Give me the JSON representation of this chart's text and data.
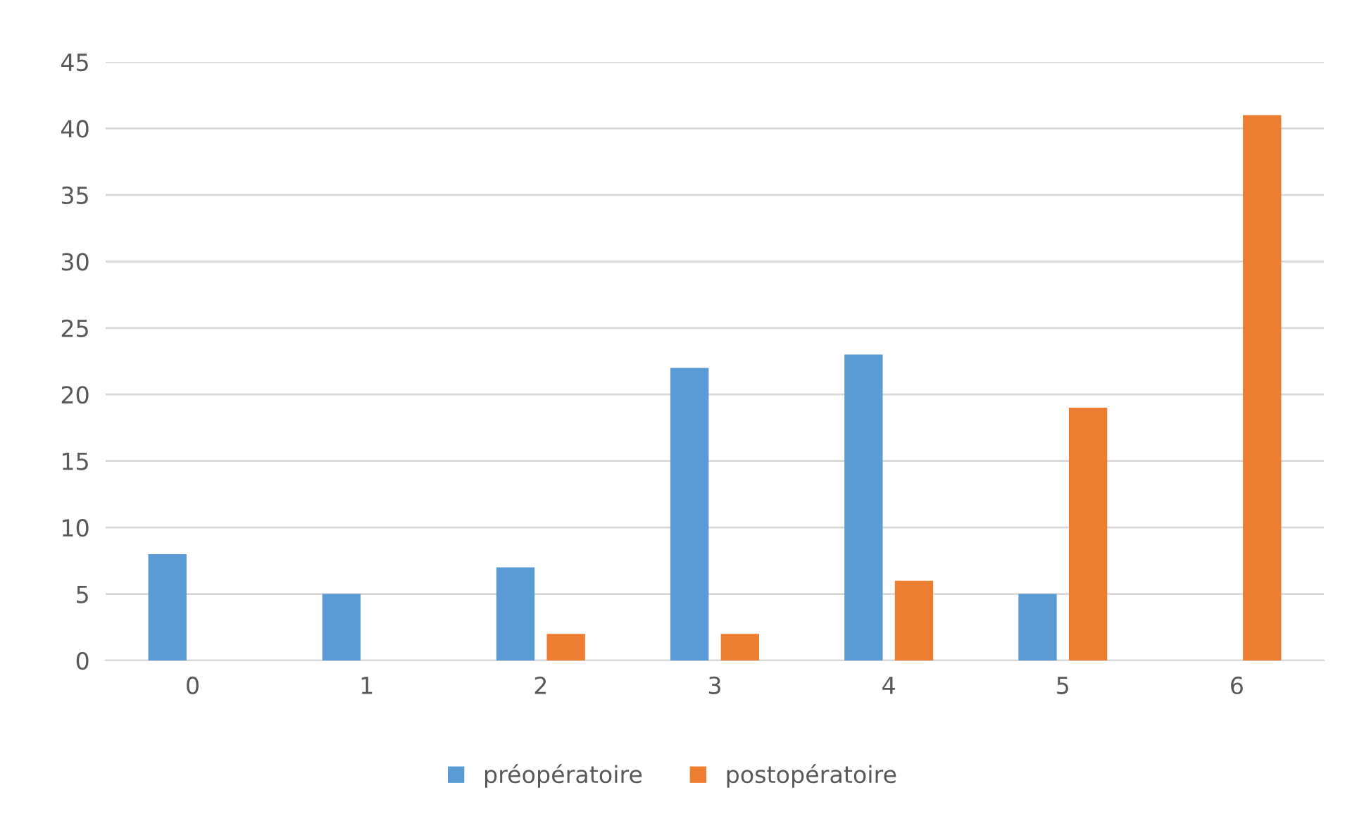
{
  "chart_data": {
    "type": "bar",
    "categories": [
      "0",
      "1",
      "2",
      "3",
      "4",
      "5",
      "6"
    ],
    "series": [
      {
        "name": "préopératoire",
        "color": "#5b9bd5",
        "values": [
          8,
          5,
          7,
          22,
          23,
          5,
          0
        ]
      },
      {
        "name": "postopératoire",
        "color": "#ed7d31",
        "values": [
          0,
          0,
          2,
          2,
          6,
          19,
          41
        ]
      }
    ],
    "ylim": [
      0,
      45
    ],
    "yticks": [
      0,
      5,
      10,
      15,
      20,
      25,
      30,
      35,
      40,
      45
    ],
    "grid": "y",
    "legend": "bottom"
  }
}
